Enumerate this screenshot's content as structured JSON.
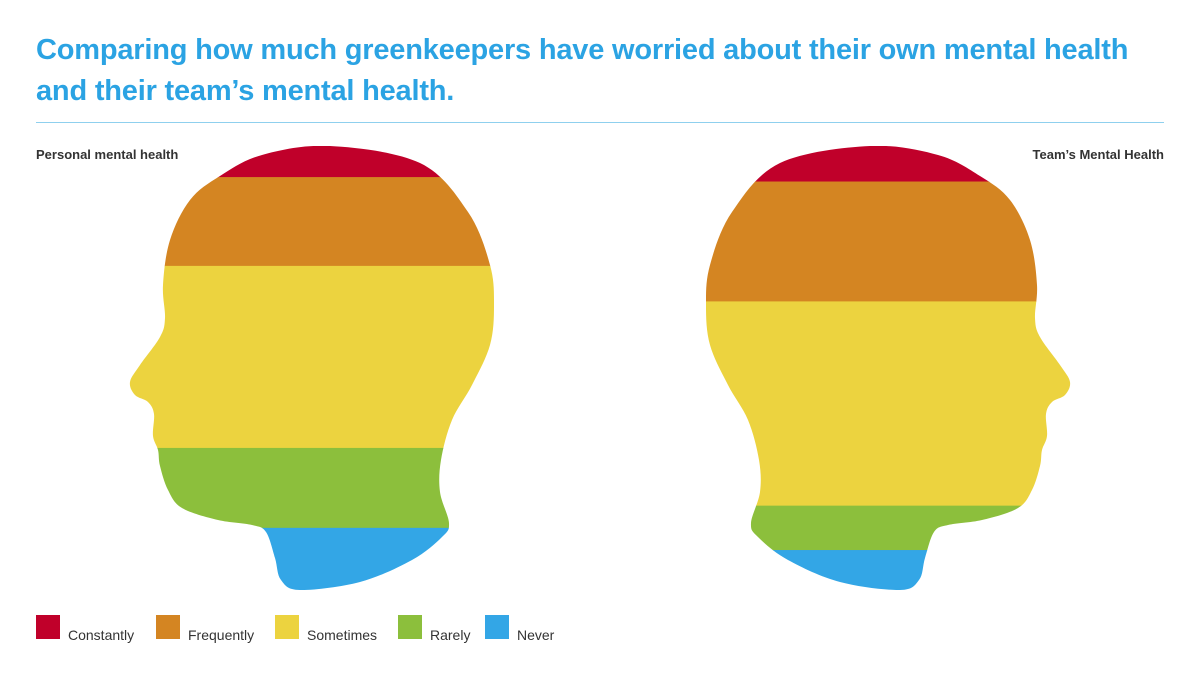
{
  "title": "Comparing how much greenkeepers have worried about their own mental health and their team’s mental health.",
  "chart_data": {
    "type": "bar",
    "subtype": "stacked-100-percent-head-silhouette",
    "categories": [
      "Constantly",
      "Frequently",
      "Sometimes",
      "Rarely",
      "Never"
    ],
    "colors": [
      "#c0002a",
      "#d48522",
      "#ecd33f",
      "#8cbf3c",
      "#33a6e6"
    ],
    "series": [
      {
        "name": "Personal mental health",
        "values": [
          7,
          20,
          41,
          18,
          14
        ]
      },
      {
        "name": "Team’s Mental Health",
        "values": [
          8,
          27,
          46,
          10,
          9
        ]
      }
    ],
    "legend": "bottom-left"
  }
}
